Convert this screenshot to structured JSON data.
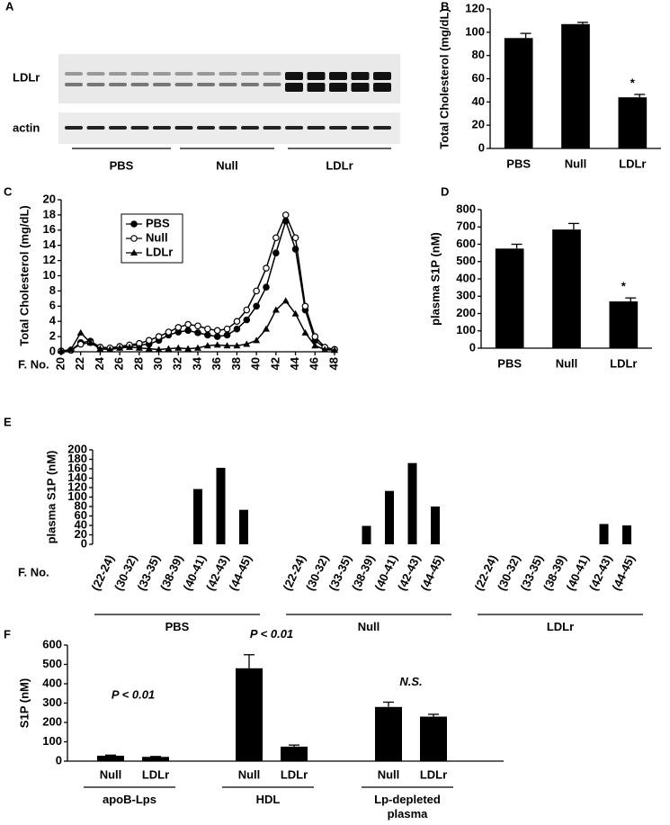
{
  "blot": {
    "panel": "A",
    "rows": [
      "LDLr",
      "actin"
    ],
    "groups": [
      "PBS",
      "Null",
      "LDLr"
    ]
  },
  "chart_data": [
    {
      "panel": "B",
      "type": "bar",
      "y_label": "Total Cholesterol (mg/dL)",
      "categories": [
        "PBS",
        "Null",
        "LDLr"
      ],
      "values": [
        95,
        107,
        44
      ],
      "errors": [
        4,
        1.5,
        2.5
      ],
      "significance": [
        null,
        null,
        "*"
      ],
      "color": "#000000",
      "ylim": [
        0,
        120
      ],
      "yticks": [
        0,
        20,
        40,
        60,
        80,
        100,
        120
      ]
    },
    {
      "panel": "C",
      "type": "line",
      "y_label": "Total Cholesterol (mg/dL)",
      "x_label": "F. No.",
      "legend": "upper left",
      "x": [
        20,
        21,
        22,
        23,
        24,
        25,
        26,
        27,
        28,
        29,
        30,
        31,
        32,
        33,
        34,
        35,
        36,
        37,
        38,
        39,
        40,
        41,
        42,
        43,
        44,
        45,
        46,
        47,
        48
      ],
      "series": [
        {
          "name": "PBS",
          "color": "#000000",
          "marker": "filled-circle",
          "values": [
            0.1,
            0.2,
            1.2,
            1.4,
            0.6,
            0.4,
            0.6,
            0.8,
            0.9,
            1.0,
            1.5,
            2.2,
            2.6,
            2.8,
            2.5,
            2.2,
            2.0,
            2.2,
            3.0,
            4.2,
            6.0,
            8.5,
            13.0,
            17.2,
            13.5,
            5.5,
            1.5,
            0.5,
            0.3
          ]
        },
        {
          "name": "Null",
          "color": "#000000",
          "marker": "open-circle",
          "values": [
            0.1,
            0.2,
            1.0,
            1.2,
            0.6,
            0.5,
            0.7,
            0.9,
            1.1,
            1.5,
            2.0,
            2.6,
            3.2,
            3.6,
            3.4,
            3.0,
            2.8,
            3.0,
            4.0,
            5.5,
            8.0,
            11.0,
            15.0,
            18.0,
            15.0,
            6.0,
            2.0,
            0.6,
            0.3
          ]
        },
        {
          "name": "LDLr",
          "color": "#000000",
          "marker": "triangle",
          "values": [
            0.1,
            0.3,
            2.5,
            1.2,
            0.4,
            0.3,
            0.5,
            0.6,
            0.5,
            0.4,
            0.3,
            0.4,
            0.5,
            0.4,
            0.5,
            0.8,
            0.9,
            0.8,
            0.8,
            1.0,
            1.5,
            3.0,
            5.5,
            6.7,
            5.0,
            2.5,
            0.8,
            0.3,
            0.2
          ]
        }
      ],
      "xlim": [
        20,
        48
      ],
      "xticks": [
        20,
        22,
        24,
        26,
        28,
        30,
        32,
        34,
        36,
        38,
        40,
        42,
        44,
        46,
        48
      ],
      "ylim": [
        0,
        20
      ],
      "yticks": [
        0,
        2,
        4,
        6,
        8,
        10,
        12,
        14,
        16,
        18,
        20
      ]
    },
    {
      "panel": "D",
      "type": "bar",
      "y_label": "plasma S1P (nM)",
      "categories": [
        "PBS",
        "Null",
        "LDLr"
      ],
      "values": [
        575,
        685,
        270
      ],
      "errors": [
        25,
        35,
        20
      ],
      "significance": [
        null,
        null,
        "*"
      ],
      "color": "#000000",
      "ylim": [
        0,
        800
      ],
      "yticks": [
        0,
        100,
        200,
        300,
        400,
        500,
        600,
        700,
        800
      ]
    },
    {
      "panel": "E",
      "type": "grouped-bar",
      "y_label": "plasma S1P (nM)",
      "x_label": "F. No.",
      "color": "#000000",
      "groups": [
        {
          "name": "PBS",
          "categories": [
            "(22-24)",
            "(30-32)",
            "(33-35)",
            "(38-39)",
            "(40-41)",
            "(42-43)",
            "(44-45)"
          ],
          "values": [
            0,
            0,
            0,
            0,
            117,
            162,
            73
          ]
        },
        {
          "name": "Null",
          "categories": [
            "(22-24)",
            "(30-32)",
            "(33-35)",
            "(38-39)",
            "(40-41)",
            "(42-43)",
            "(44-45)"
          ],
          "values": [
            0,
            0,
            0,
            39,
            113,
            172,
            80
          ]
        },
        {
          "name": "LDLr",
          "categories": [
            "(22-24)",
            "(30-32)",
            "(33-35)",
            "(38-39)",
            "(40-41)",
            "(42-43)",
            "(44-45)"
          ],
          "values": [
            0,
            0,
            0,
            0,
            0,
            43,
            40
          ]
        }
      ],
      "ylim": [
        0,
        200
      ],
      "yticks": [
        0,
        20,
        40,
        60,
        80,
        100,
        120,
        140,
        160,
        180,
        200
      ]
    },
    {
      "panel": "F",
      "type": "grouped-bar",
      "y_label": "S1P (nM)",
      "color": "#000000",
      "groups": [
        {
          "name": "apoB-Lps",
          "annotation": "P < 0.01",
          "categories": [
            "Null",
            "LDLr"
          ],
          "values": [
            28,
            22
          ],
          "errors": [
            3,
            2
          ]
        },
        {
          "name": "HDL",
          "annotation": "P < 0.01",
          "categories": [
            "Null",
            "LDLr"
          ],
          "values": [
            480,
            75
          ],
          "errors": [
            70,
            8
          ]
        },
        {
          "name": "Lp-depleted plasma",
          "annotation": "N.S.",
          "categories": [
            "Null",
            "LDLr"
          ],
          "values": [
            280,
            230
          ],
          "errors": [
            25,
            12
          ]
        }
      ],
      "ylim": [
        0,
        600
      ],
      "yticks": [
        0,
        100,
        200,
        300,
        400,
        500,
        600
      ]
    }
  ]
}
